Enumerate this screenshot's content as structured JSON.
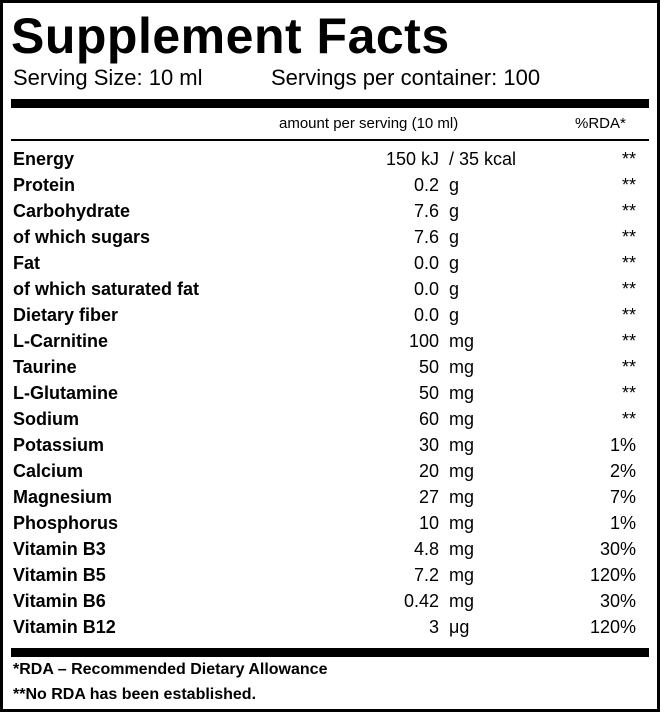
{
  "header": {
    "title": "Supplement Facts",
    "serving_size": "Serving Size: 10 ml",
    "servings_per_container": "Servings per container: 100"
  },
  "table": {
    "columns": {
      "amount": "amount per serving (10 ml)",
      "rda": "%RDA*"
    },
    "rows": [
      [
        "Energy",
        "150 kJ",
        "/ 35 kcal",
        "**"
      ],
      [
        "Protein",
        "0.2",
        "g",
        "**"
      ],
      [
        "Carbohydrate",
        "7.6",
        "g",
        "**"
      ],
      [
        "of which sugars",
        "7.6",
        "g",
        "**"
      ],
      [
        "Fat",
        "0.0",
        "g",
        "**"
      ],
      [
        "of which saturated fat",
        "0.0",
        "g",
        "**"
      ],
      [
        "Dietary fiber",
        "0.0",
        "g",
        "**"
      ],
      [
        "L-Carnitine",
        "100",
        "mg",
        "**"
      ],
      [
        "Taurine",
        "50",
        "mg",
        "**"
      ],
      [
        "L-Glutamine",
        "50",
        "mg",
        "**"
      ],
      [
        "Sodium",
        "60",
        "mg",
        "**"
      ],
      [
        "Potassium",
        "30",
        "mg",
        "1%"
      ],
      [
        "Calcium",
        "20",
        "mg",
        "2%"
      ],
      [
        "Magnesium",
        "27",
        "mg",
        "7%"
      ],
      [
        "Phosphorus",
        "10",
        "mg",
        "1%"
      ],
      [
        "Vitamin B3",
        "4.8",
        "mg",
        "30%"
      ],
      [
        "Vitamin B5",
        "7.2",
        "mg",
        "120%"
      ],
      [
        "Vitamin B6",
        "0.42",
        "mg",
        "30%"
      ],
      [
        "Vitamin B12",
        "3",
        "μg",
        "120%"
      ]
    ]
  },
  "footnotes": [
    "*RDA – Recommended Dietary Allowance",
    "**No RDA has been established."
  ]
}
